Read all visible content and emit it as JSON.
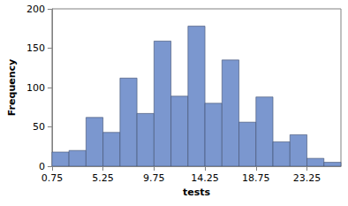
{
  "chart_data": {
    "type": "histogram",
    "x_label": "tests",
    "y_label": "Frequency",
    "bins": [
      0.75,
      2.25,
      3.75,
      5.25,
      6.75,
      8.25,
      9.75,
      11.25,
      12.75,
      14.25,
      15.75,
      17.25,
      18.75,
      20.25,
      21.75,
      23.25,
      24.75,
      26.25
    ],
    "counts": [
      18,
      20,
      62,
      43,
      112,
      67,
      159,
      89,
      178,
      80,
      135,
      56,
      88,
      31,
      40,
      10,
      5
    ],
    "color": "#7b97cf",
    "xlim": [
      0.75,
      26.25
    ],
    "xticks": [
      0.75,
      5.25,
      9.75,
      14.25,
      18.75,
      23.25
    ],
    "ylim": [
      0,
      200
    ],
    "yticks": [
      0,
      50,
      100,
      150,
      200
    ],
    "grid": false
  }
}
